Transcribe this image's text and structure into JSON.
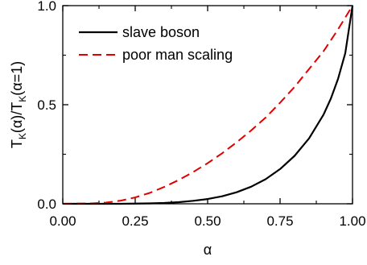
{
  "chart_data": {
    "type": "line",
    "xlabel": "α",
    "ylabel": {
      "base": "T",
      "sub1": "K",
      "mid": "(α)/T",
      "sub2": "K",
      "end": "(α=1)"
    },
    "xlim": [
      0.0,
      1.0
    ],
    "ylim": [
      0.0,
      1.0
    ],
    "x_ticks": [
      "0.00",
      "0.25",
      "0.50",
      "0.75",
      "1.00"
    ],
    "y_ticks": [
      "0.0",
      "0.5",
      "1.0"
    ],
    "legend_position": "top-left",
    "grid": false,
    "series": [
      {
        "name": "slave boson",
        "color": "#000000",
        "style": "solid",
        "x": [
          0.0,
          0.1,
          0.2,
          0.3,
          0.35,
          0.4,
          0.45,
          0.5,
          0.55,
          0.6,
          0.65,
          0.7,
          0.75,
          0.8,
          0.85,
          0.9,
          0.925,
          0.95,
          0.975,
          1.0
        ],
        "y": [
          0.0,
          0.0,
          0.0,
          0.002,
          0.004,
          0.008,
          0.015,
          0.024,
          0.038,
          0.058,
          0.086,
          0.124,
          0.175,
          0.242,
          0.33,
          0.45,
          0.53,
          0.63,
          0.76,
          1.0
        ]
      },
      {
        "name": "poor man scaling",
        "color": "#e00000",
        "style": "dashed",
        "x": [
          0.0,
          0.1,
          0.15,
          0.2,
          0.25,
          0.3,
          0.35,
          0.4,
          0.45,
          0.5,
          0.55,
          0.6,
          0.65,
          0.7,
          0.75,
          0.8,
          0.85,
          0.9,
          0.95,
          1.0
        ],
        "y": [
          0.0,
          0.002,
          0.006,
          0.016,
          0.032,
          0.055,
          0.085,
          0.12,
          0.16,
          0.205,
          0.255,
          0.31,
          0.37,
          0.435,
          0.51,
          0.59,
          0.68,
          0.77,
          0.88,
          1.0
        ]
      }
    ]
  }
}
